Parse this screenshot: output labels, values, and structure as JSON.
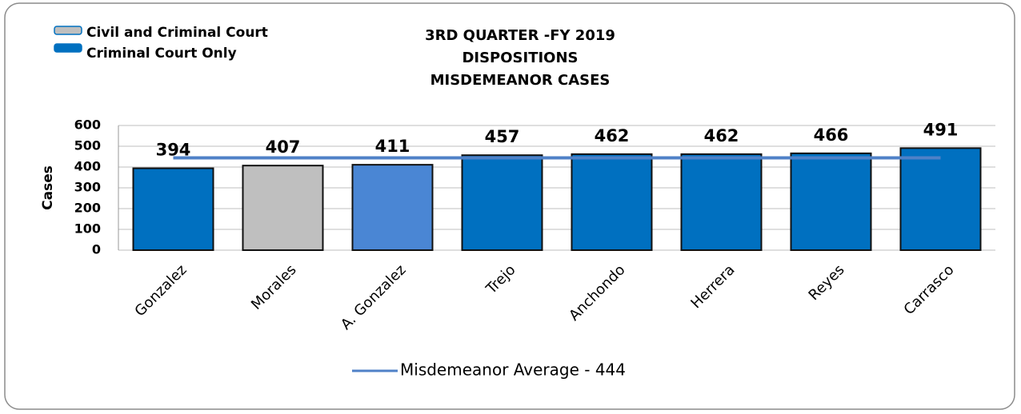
{
  "chart_data": {
    "type": "bar",
    "title": [
      "3RD QUARTER -FY 2019",
      "DISPOSITIONS",
      "MISDEMEANOR CASES"
    ],
    "y_label": "Cases",
    "categories": [
      "Gonzalez",
      "Morales",
      "A. Gonzalez",
      "Trejo",
      "Anchondo",
      "Herrera",
      "Reyes",
      "Carrasco"
    ],
    "values": [
      394,
      407,
      411,
      457,
      462,
      462,
      466,
      491
    ],
    "colors": [
      "#0070c0",
      "#bfbfbf",
      "#4a86d4",
      "#0070c0",
      "#0070c0",
      "#0070c0",
      "#0070c0",
      "#0070c0"
    ],
    "legend": [
      {
        "name": "Civil and Criminal Court",
        "color": "#bfbfbf"
      },
      {
        "name": "Criminal Court Only",
        "color": "#0070c0"
      }
    ],
    "average": {
      "name": "Misdemeanor Average - 444",
      "value": 444,
      "color": "#4f81c7"
    },
    "ylim": [
      0,
      600
    ],
    "yticks": [
      0,
      100,
      200,
      300,
      400,
      500,
      600
    ],
    "grid": true
  }
}
